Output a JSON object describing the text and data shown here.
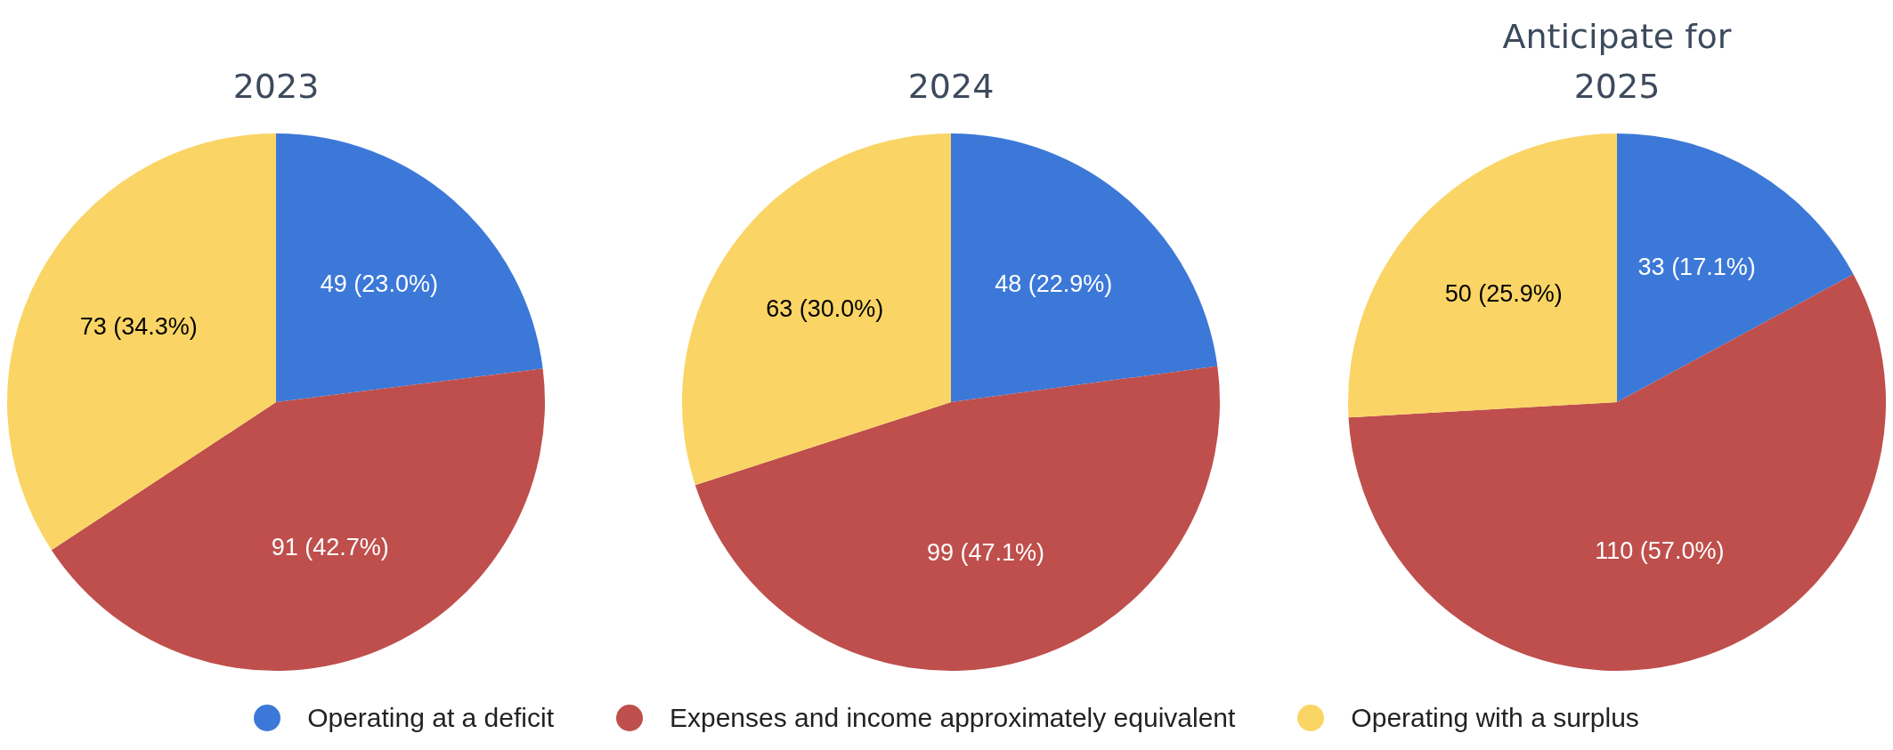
{
  "chart_data": [
    {
      "type": "pie",
      "title": "2023",
      "categories": [
        "Operating at a deficit",
        "Expenses and income approximately equivalent",
        "Operating with a surplus"
      ],
      "values": [
        49,
        91,
        73
      ],
      "colors": [
        "#3c78d8",
        "#be4f4c",
        "#fad565"
      ],
      "value_labels": [
        "49 (23.0%)",
        "91 (42.7%)",
        "73 (34.3%)"
      ],
      "legend": "bottom"
    },
    {
      "type": "pie",
      "title": "2024",
      "categories": [
        null,
        null,
        null
      ],
      "values": [
        48,
        99,
        63
      ],
      "colors": [
        "#3c78d8",
        "#be4f4c",
        "#fad565"
      ],
      "value_labels": [
        "48 (22.9%)",
        "99 (47.1%)",
        "63 (30.0%)"
      ]
    },
    {
      "type": "pie",
      "title": "Anticipate for 2025",
      "categories": [
        null,
        null,
        null
      ],
      "values": [
        33,
        110,
        50
      ],
      "colors": [
        "#3c78d8",
        "#be4f4c",
        "#fad565"
      ],
      "value_labels": [
        "33 (17.1%)",
        "110 (57.0%)",
        "50 (25.9%)"
      ]
    }
  ]
}
